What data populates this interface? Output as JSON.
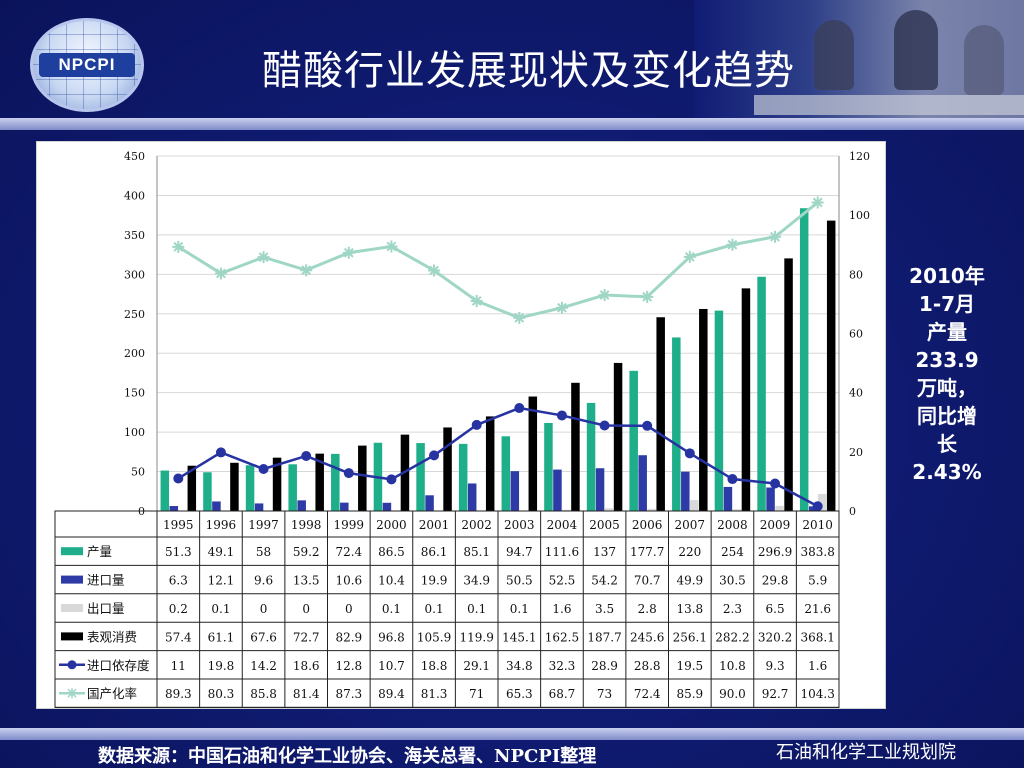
{
  "page": {
    "title": "醋酸行业发展现状及变化趋势",
    "logo_text": "NPCPI",
    "side_note": [
      "2010年",
      "1-7月",
      "产量",
      "233.9",
      "万吨，",
      "同比增",
      "长",
      "2.43%"
    ],
    "source": "数据来源：中国石油和化学工业协会、海关总署、NPCPI整理",
    "org": "石油和化学工业规划院",
    "colors": {
      "background": "#0b1660",
      "production": "#1fae8a",
      "import": "#2e3aa6",
      "export": "#d9d9d9",
      "consumption": "#000000",
      "import_dependency": "#2633a0",
      "localization": "#9fd6c6"
    }
  },
  "chart_data": {
    "type": "bar",
    "categories": [
      "1995",
      "1996",
      "1997",
      "1998",
      "1999",
      "2000",
      "2001",
      "2002",
      "2003",
      "2004",
      "2005",
      "2006",
      "2007",
      "2008",
      "2009",
      "2010"
    ],
    "y_left": {
      "ticks": [
        0,
        50,
        100,
        150,
        200,
        250,
        300,
        350,
        400,
        450
      ],
      "range": [
        0,
        450
      ]
    },
    "y_right": {
      "ticks": [
        0,
        20,
        40,
        60,
        80,
        100,
        120
      ],
      "range": [
        0,
        120
      ]
    },
    "series": [
      {
        "name": "产量",
        "type": "bar",
        "axis": "left",
        "color": "#1fae8a",
        "values": [
          51.3,
          49.1,
          58,
          59.2,
          72.4,
          86.5,
          86.1,
          85.1,
          94.7,
          111.6,
          137,
          177.7,
          220,
          254,
          296.9,
          383.8
        ],
        "labels": [
          "51.3",
          "49.1",
          "58",
          "59.2",
          "72.4",
          "86.5",
          "86.1",
          "85.1",
          "94.7",
          "111.6",
          "137",
          "177.7",
          "220",
          "254",
          "296.9",
          "383.8"
        ]
      },
      {
        "name": "进口量",
        "type": "bar",
        "axis": "left",
        "color": "#2e3aa6",
        "values": [
          6.3,
          12.1,
          9.6,
          13.5,
          10.6,
          10.4,
          19.9,
          34.9,
          50.5,
          52.5,
          54.2,
          70.7,
          49.9,
          30.5,
          29.8,
          5.9
        ],
        "labels": [
          "6.3",
          "12.1",
          "9.6",
          "13.5",
          "10.6",
          "10.4",
          "19.9",
          "34.9",
          "50.5",
          "52.5",
          "54.2",
          "70.7",
          "49.9",
          "30.5",
          "29.8",
          "5.9"
        ]
      },
      {
        "name": "出口量",
        "type": "bar",
        "axis": "left",
        "color": "#d9d9d9",
        "values": [
          0.2,
          0.1,
          0,
          0,
          0,
          0.1,
          0.1,
          0.1,
          0.1,
          1.6,
          3.5,
          2.8,
          13.8,
          2.3,
          6.5,
          21.6
        ],
        "labels": [
          "0.2",
          "0.1",
          "0",
          "0",
          "0",
          "0.1",
          "0.1",
          "0.1",
          "0.1",
          "1.6",
          "3.5",
          "2.8",
          "13.8",
          "2.3",
          "6.5",
          "21.6"
        ]
      },
      {
        "name": "表观消费",
        "type": "bar",
        "axis": "left",
        "color": "#000000",
        "values": [
          57.4,
          61.1,
          67.6,
          72.7,
          82.9,
          96.8,
          105.9,
          119.9,
          145.1,
          162.5,
          187.7,
          245.6,
          256.1,
          282.2,
          320.2,
          368.1
        ],
        "labels": [
          "57.4",
          "61.1",
          "67.6",
          "72.7",
          "82.9",
          "96.8",
          "105.9",
          "119.9",
          "145.1",
          "162.5",
          "187.7",
          "245.6",
          "256.1",
          "282.2",
          "320.2",
          "368.1"
        ]
      },
      {
        "name": "进口依存度",
        "type": "line",
        "axis": "right",
        "color": "#2633a0",
        "marker": "circle",
        "values": [
          11,
          19.8,
          14.2,
          18.6,
          12.8,
          10.7,
          18.8,
          29.1,
          34.8,
          32.3,
          28.9,
          28.8,
          19.5,
          10.8,
          9.3,
          1.6
        ],
        "labels": [
          "11",
          "19.8",
          "14.2",
          "18.6",
          "12.8",
          "10.7",
          "18.8",
          "29.1",
          "34.8",
          "32.3",
          "28.9",
          "28.8",
          "19.5",
          "10.8",
          "9.3",
          "1.6"
        ]
      },
      {
        "name": "国产化率",
        "type": "line",
        "axis": "right",
        "color": "#9fd6c6",
        "marker": "star",
        "values": [
          89.3,
          80.3,
          85.8,
          81.4,
          87.3,
          89.4,
          81.3,
          71,
          65.3,
          68.7,
          73,
          72.4,
          85.9,
          90.0,
          92.7,
          104.3
        ],
        "labels": [
          "89.3",
          "80.3",
          "85.8",
          "81.4",
          "87.3",
          "89.4",
          "81.3",
          "71",
          "65.3",
          "68.7",
          "73",
          "72.4",
          "85.9",
          "90.0",
          "92.7",
          "104.3"
        ]
      }
    ],
    "grid": "horizontal",
    "legend": "table-below"
  }
}
